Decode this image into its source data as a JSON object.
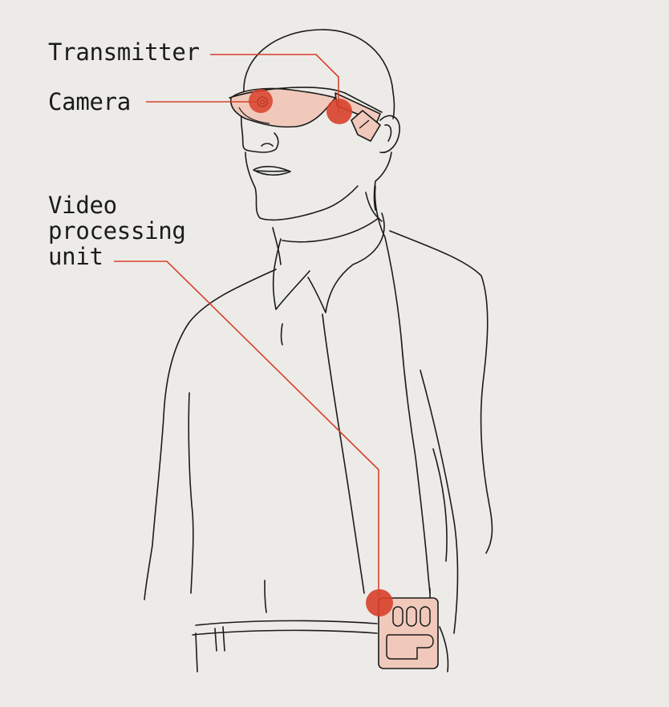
{
  "colors": {
    "background": "#ecebe8",
    "ink": "#1b1b1b",
    "accent": "#d8412a",
    "accent_fill": "#f0c9bb"
  },
  "callouts": {
    "transmitter": "Transmitter",
    "camera": "Camera",
    "video_processing_unit": [
      "Video",
      "processing",
      "unit"
    ]
  }
}
